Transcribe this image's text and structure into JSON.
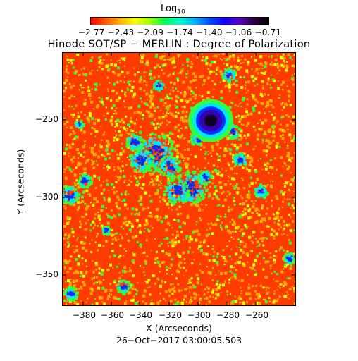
{
  "colorbar": {
    "title_main": "Log",
    "title_sub": "10",
    "tick_text": "−2.77 −2.43 −2.09 −1.74 −1.40 −1.06 −0.71",
    "colors": [
      "#ff0000",
      "#ff5a00",
      "#ffb400",
      "#f5ff00",
      "#9bff00",
      "#00ff55",
      "#00ffd5",
      "#00b4ff",
      "#0050ff",
      "#1000ff",
      "#5a00c8",
      "#2a0040",
      "#000000"
    ]
  },
  "title": "Hinode SOT/SP − MERLIN : Degree of Polarization",
  "xlabel": "X (Arcseconds)",
  "ylabel": "Y (Arcseconds)",
  "date": "26−Oct−2017 03:00:05.503",
  "x_ticks": [
    "−380",
    "−360",
    "−340",
    "−320",
    "−300",
    "−280",
    "−260"
  ],
  "y_ticks": [
    "−250",
    "−300",
    "−350"
  ],
  "map_colors": {
    "background": "#ff3c00",
    "speckle_light": "#ffa800",
    "speckle_yellow": "#e8ff00",
    "green": "#30ff40",
    "cyan": "#00e8ff",
    "blue": "#0030ff",
    "violet": "#3a00b0",
    "core": "#100028"
  }
}
